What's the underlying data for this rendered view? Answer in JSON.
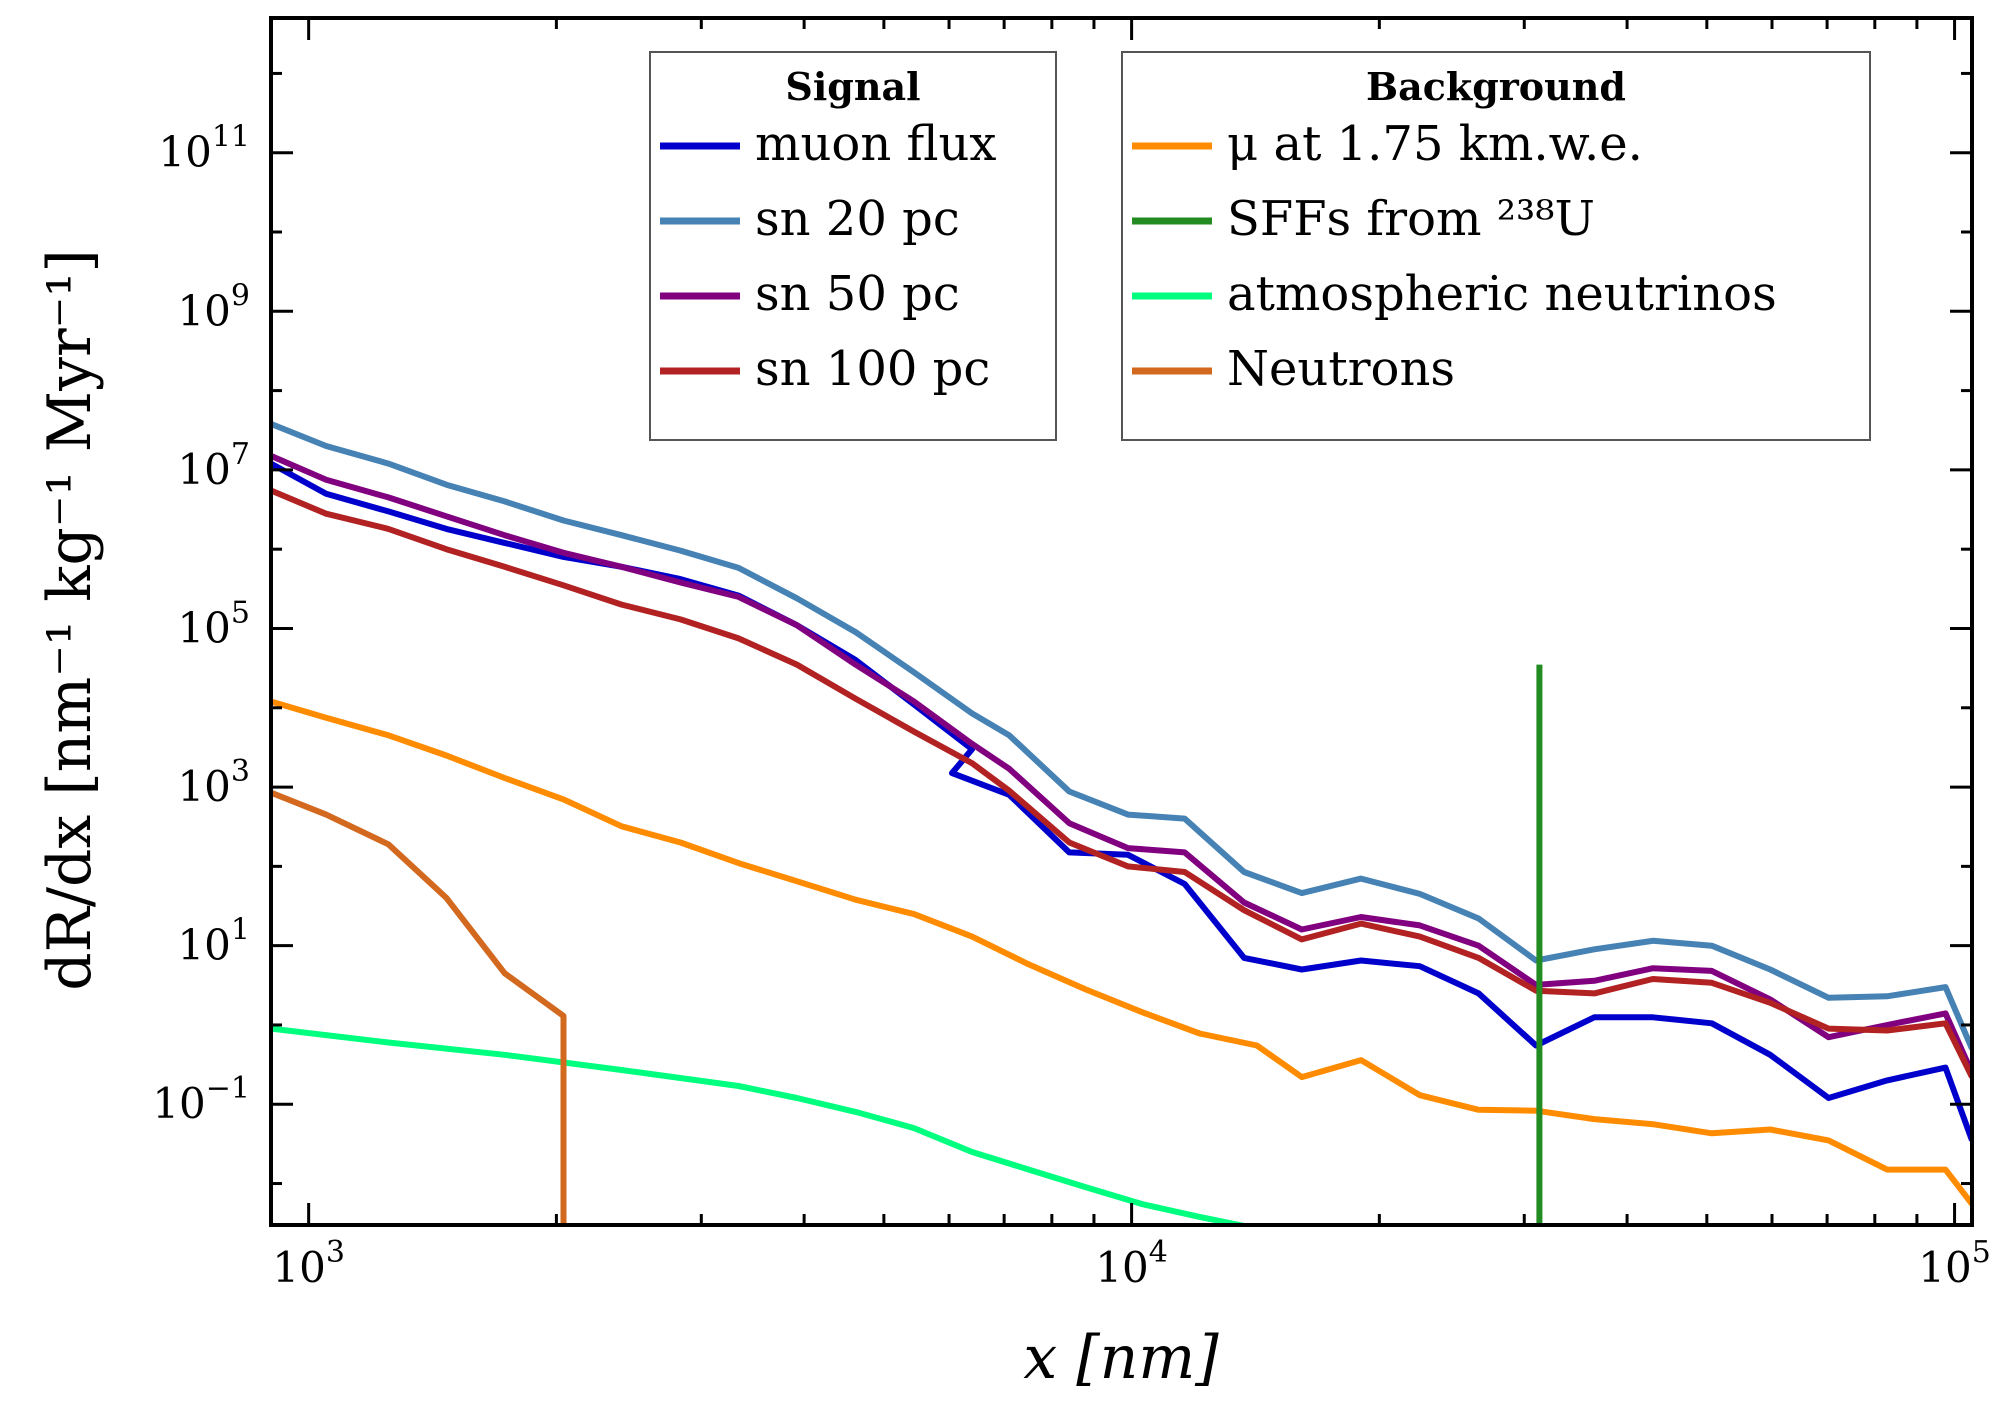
{
  "chart_data": {
    "type": "line",
    "xscale": "log",
    "yscale": "log",
    "xlim": [
      900,
      105000
    ],
    "ylim": [
      0.003,
      5000000000000.0
    ],
    "xlabel": "x [nm]",
    "ylabel": "dR/dx [nm⁻¹ kg⁻¹ Myr⁻¹]",
    "x_ticks": [
      {
        "value": 1000,
        "base": "10",
        "exp": "3"
      },
      {
        "value": 10000,
        "base": "10",
        "exp": "4"
      },
      {
        "value": 100000,
        "base": "10",
        "exp": "5"
      }
    ],
    "y_ticks": [
      {
        "value": 0.1,
        "base": "10",
        "exp": "−1"
      },
      {
        "value": 10,
        "base": "10",
        "exp": "1"
      },
      {
        "value": 1000,
        "base": "10",
        "exp": "3"
      },
      {
        "value": 100000,
        "base": "10",
        "exp": "5"
      },
      {
        "value": 10000000,
        "base": "10",
        "exp": "7"
      },
      {
        "value": 1000000000,
        "base": "10",
        "exp": "9"
      },
      {
        "value": 100000000000,
        "base": "10",
        "exp": "11"
      }
    ],
    "legend_groups": [
      {
        "title": "Signal",
        "entries": [
          {
            "label": "muon flux",
            "color": "#0000cd"
          },
          {
            "label": "sn 20 pc",
            "color": "#4682b4"
          },
          {
            "label": "sn 50 pc",
            "color": "#800080"
          },
          {
            "label": "sn 100 pc",
            "color": "#b22222"
          }
        ]
      },
      {
        "title": "Background",
        "entries": [
          {
            "label": "μ at 1.75 km.w.e.",
            "color": "#ff8c00"
          },
          {
            "label": "SFFs from ²³⁸U",
            "color": "#228b22"
          },
          {
            "label": "atmospheric neutrinos",
            "color": "#00ff7f"
          },
          {
            "label": "Neutrons",
            "color": "#d2691e"
          }
        ]
      }
    ],
    "series": [
      {
        "name": "muon flux",
        "color": "#0000cd",
        "points": [
          [
            900,
            12000000
          ],
          [
            1050,
            5000000
          ],
          [
            1250,
            3000000
          ],
          [
            1470,
            1800000
          ],
          [
            1730,
            1200000
          ],
          [
            2040,
            800000
          ],
          [
            2400,
            600000
          ],
          [
            2830,
            420000
          ],
          [
            3330,
            260000
          ],
          [
            3920,
            110000
          ],
          [
            4620,
            40000
          ],
          [
            5440,
            11000
          ],
          [
            6400,
            3000
          ],
          [
            6050,
            1500
          ],
          [
            7100,
            800
          ],
          [
            8400,
            150
          ],
          [
            9900,
            140
          ],
          [
            11600,
            60
          ],
          [
            13700,
            7
          ],
          [
            16100,
            5
          ],
          [
            19000,
            6.5
          ],
          [
            22400,
            5.5
          ],
          [
            26400,
            2.5
          ],
          [
            31000,
            0.55
          ],
          [
            36500,
            1.25
          ],
          [
            43000,
            1.25
          ],
          [
            50700,
            1.05
          ],
          [
            59700,
            0.42
          ],
          [
            70300,
            0.12
          ],
          [
            82800,
            0.2
          ],
          [
            97500,
            0.29
          ],
          [
            105000,
            0.035
          ]
        ]
      },
      {
        "name": "sn 20 pc",
        "color": "#4682b4",
        "points": [
          [
            900,
            38000000
          ],
          [
            1050,
            20000000
          ],
          [
            1250,
            12000000
          ],
          [
            1470,
            6500000
          ],
          [
            1730,
            4000000
          ],
          [
            2040,
            2300000
          ],
          [
            2400,
            1500000
          ],
          [
            2830,
            960000
          ],
          [
            3330,
            580000
          ],
          [
            3920,
            240000
          ],
          [
            4620,
            90000
          ],
          [
            5440,
            28000
          ],
          [
            6400,
            8500
          ],
          [
            7100,
            4500
          ],
          [
            8400,
            880
          ],
          [
            9900,
            450
          ],
          [
            11600,
            400
          ],
          [
            13700,
            85
          ],
          [
            16100,
            46
          ],
          [
            19000,
            70
          ],
          [
            22400,
            45
          ],
          [
            26400,
            22
          ],
          [
            31000,
            6.5
          ],
          [
            36500,
            9
          ],
          [
            43000,
            11.5
          ],
          [
            50700,
            10
          ],
          [
            59700,
            5
          ],
          [
            70300,
            2.2
          ],
          [
            82800,
            2.3
          ],
          [
            97500,
            3
          ],
          [
            105000,
            0.5
          ]
        ]
      },
      {
        "name": "sn 50 pc",
        "color": "#800080",
        "points": [
          [
            900,
            15000000
          ],
          [
            1050,
            7500000
          ],
          [
            1250,
            4500000
          ],
          [
            1470,
            2600000
          ],
          [
            1730,
            1500000
          ],
          [
            2040,
            900000
          ],
          [
            2400,
            600000
          ],
          [
            2830,
            380000
          ],
          [
            3330,
            250000
          ],
          [
            3920,
            110000
          ],
          [
            4620,
            35000
          ],
          [
            5440,
            12000
          ],
          [
            6400,
            3500
          ],
          [
            7100,
            1700
          ],
          [
            8400,
            350
          ],
          [
            9900,
            170
          ],
          [
            11600,
            150
          ],
          [
            13700,
            35
          ],
          [
            16100,
            16
          ],
          [
            19000,
            23
          ],
          [
            22400,
            18
          ],
          [
            26400,
            10
          ],
          [
            31000,
            3.2
          ],
          [
            36500,
            3.6
          ],
          [
            43000,
            5.2
          ],
          [
            50700,
            4.8
          ],
          [
            59700,
            2.1
          ],
          [
            70300,
            0.7
          ],
          [
            82800,
            1
          ],
          [
            97500,
            1.4
          ],
          [
            105000,
            0.25
          ]
        ]
      },
      {
        "name": "sn 100 pc",
        "color": "#b22222",
        "points": [
          [
            900,
            5500000
          ],
          [
            1050,
            2800000
          ],
          [
            1250,
            1800000
          ],
          [
            1470,
            1000000
          ],
          [
            1730,
            600000
          ],
          [
            2040,
            350000
          ],
          [
            2400,
            200000
          ],
          [
            2830,
            130000
          ],
          [
            3330,
            75000
          ],
          [
            3920,
            35000
          ],
          [
            4620,
            13000
          ],
          [
            5440,
            5000
          ],
          [
            6400,
            2000
          ],
          [
            7100,
            900
          ],
          [
            8400,
            200
          ],
          [
            9900,
            100
          ],
          [
            11600,
            85
          ],
          [
            13700,
            28
          ],
          [
            16100,
            12
          ],
          [
            19000,
            19
          ],
          [
            22400,
            13
          ],
          [
            26400,
            7
          ],
          [
            31000,
            2.7
          ],
          [
            36500,
            2.5
          ],
          [
            43000,
            3.8
          ],
          [
            50700,
            3.4
          ],
          [
            59700,
            1.9
          ],
          [
            70300,
            0.9
          ],
          [
            82800,
            0.85
          ],
          [
            97500,
            1.05
          ],
          [
            105000,
            0.22
          ]
        ]
      },
      {
        "name": "μ at 1.75 km.w.e.",
        "color": "#ff8c00",
        "points": [
          [
            900,
            12000
          ],
          [
            1050,
            7500
          ],
          [
            1250,
            4500
          ],
          [
            1470,
            2500
          ],
          [
            1730,
            1300
          ],
          [
            2040,
            700
          ],
          [
            2400,
            320
          ],
          [
            2830,
            200
          ],
          [
            3330,
            110
          ],
          [
            3920,
            65
          ],
          [
            4620,
            38
          ],
          [
            5440,
            25
          ],
          [
            6400,
            13
          ],
          [
            7500,
            5.8
          ],
          [
            8800,
            2.8
          ],
          [
            10300,
            1.45
          ],
          [
            12100,
            0.78
          ],
          [
            14200,
            0.55
          ],
          [
            16100,
            0.22
          ],
          [
            19000,
            0.36
          ],
          [
            22400,
            0.13
          ],
          [
            26400,
            0.085
          ],
          [
            31000,
            0.083
          ],
          [
            36500,
            0.065
          ],
          [
            43000,
            0.056
          ],
          [
            50700,
            0.043
          ],
          [
            59700,
            0.048
          ],
          [
            70300,
            0.035
          ],
          [
            82800,
            0.015
          ],
          [
            97500,
            0.015
          ],
          [
            105000,
            0.0055
          ]
        ]
      },
      {
        "name": "SFFs from ²³⁸U",
        "color": "#228b22",
        "points": [
          [
            31300,
            0.003
          ],
          [
            31300,
            35000
          ]
        ]
      },
      {
        "name": "atmospheric neutrinos",
        "color": "#00ff7f",
        "points": [
          [
            900,
            0.9
          ],
          [
            1250,
            0.6
          ],
          [
            1730,
            0.42
          ],
          [
            2400,
            0.27
          ],
          [
            3330,
            0.17
          ],
          [
            3920,
            0.12
          ],
          [
            4620,
            0.08
          ],
          [
            5440,
            0.05
          ],
          [
            6400,
            0.025
          ],
          [
            7500,
            0.015
          ],
          [
            8800,
            0.009
          ],
          [
            10300,
            0.0055
          ],
          [
            12100,
            0.0038
          ],
          [
            14200,
            0.0027
          ],
          [
            16500,
            0.0019
          ]
        ]
      },
      {
        "name": "Neutrons",
        "color": "#d2691e",
        "points": [
          [
            900,
            850
          ],
          [
            1050,
            450
          ],
          [
            1250,
            190
          ],
          [
            1470,
            40
          ],
          [
            1730,
            4.5
          ],
          [
            2040,
            1.3
          ],
          [
            2040,
            0.001
          ]
        ]
      }
    ]
  }
}
